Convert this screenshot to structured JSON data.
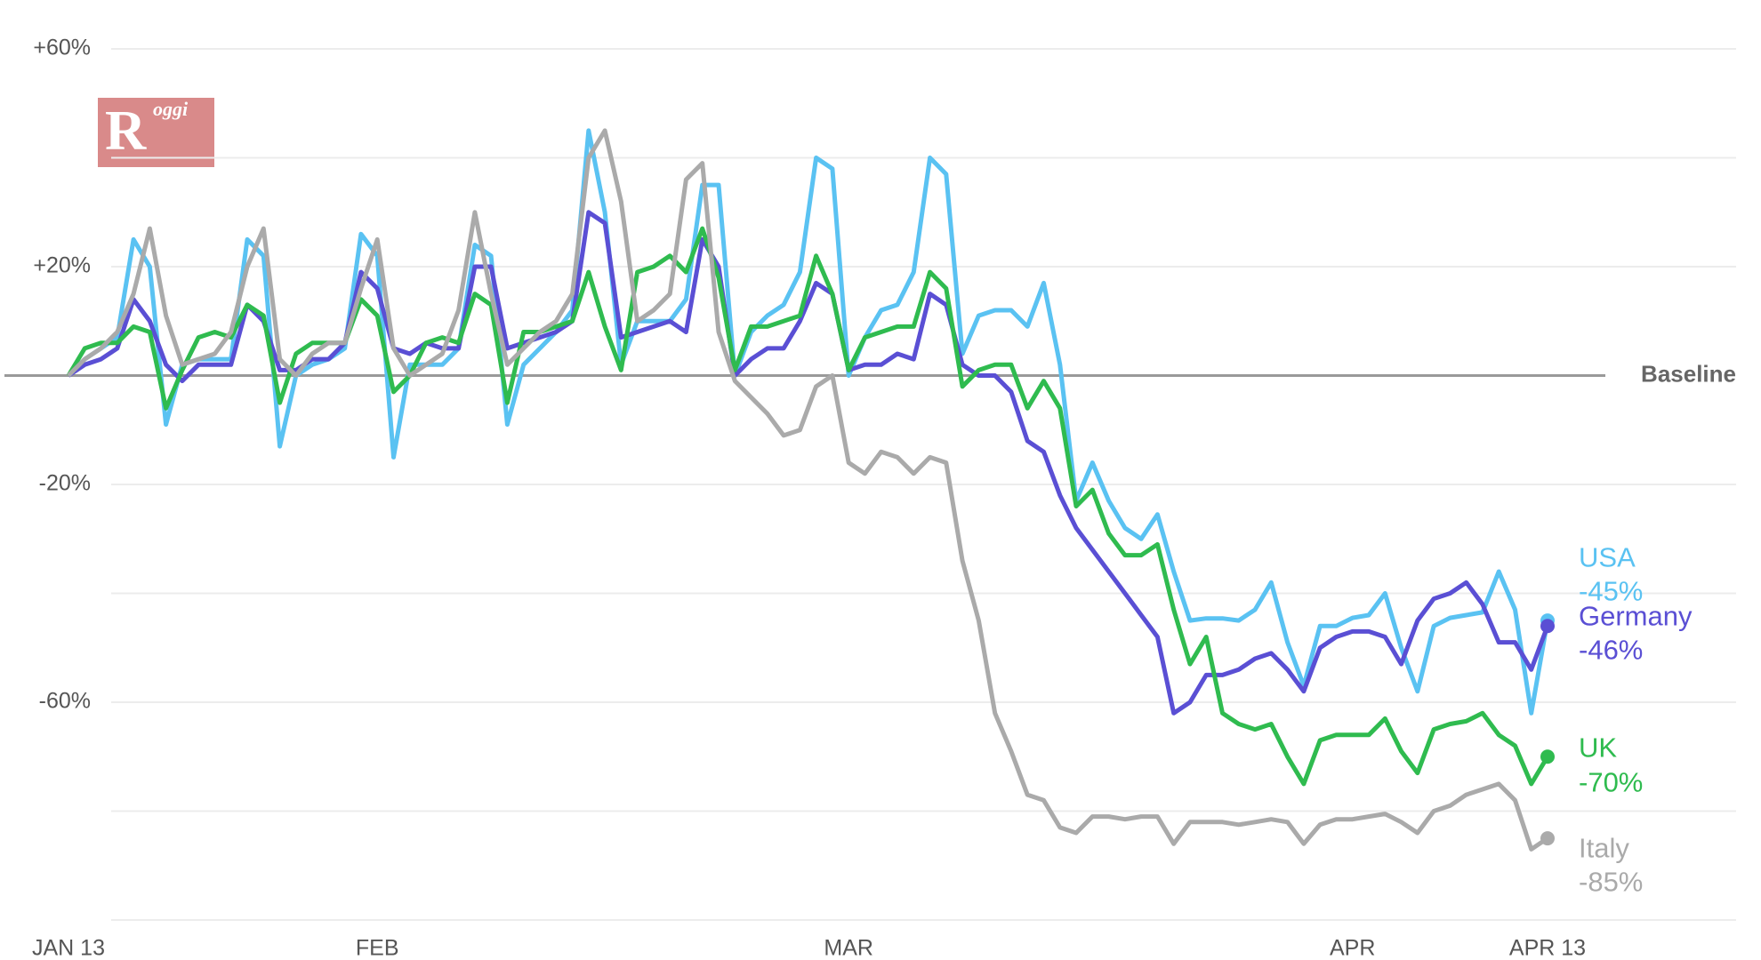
{
  "chart_data": {
    "type": "line",
    "categories": [
      "JAN 13",
      null,
      null,
      null,
      null,
      null,
      null,
      null,
      null,
      null,
      null,
      null,
      null,
      null,
      null,
      null,
      null,
      null,
      null,
      "FEB",
      null,
      null,
      null,
      null,
      null,
      null,
      null,
      null,
      null,
      null,
      null,
      null,
      null,
      null,
      null,
      null,
      null,
      null,
      null,
      null,
      null,
      null,
      null,
      null,
      null,
      null,
      null,
      null,
      "MAR",
      null,
      null,
      null,
      null,
      null,
      null,
      null,
      null,
      null,
      null,
      null,
      null,
      null,
      null,
      null,
      null,
      null,
      null,
      null,
      null,
      null,
      null,
      null,
      null,
      null,
      null,
      null,
      null,
      null,
      null,
      "APR",
      null,
      null,
      null,
      null,
      null,
      null,
      null,
      null,
      null,
      null,
      null,
      "APR 13"
    ],
    "ylim": [
      -100,
      60
    ],
    "yticks": [
      {
        "value": 60,
        "label": "+60%"
      },
      {
        "value": 20,
        "label": "+20%"
      },
      {
        "value": -20,
        "label": "-20%"
      },
      {
        "value": -60,
        "label": "-60%"
      }
    ],
    "gridlines": [
      60,
      40,
      20,
      -20,
      -40,
      -60,
      -80,
      -100
    ],
    "baseline": {
      "value": 0,
      "label": "Baseline"
    },
    "series": [
      {
        "name": "USA",
        "color": "#5ac2f2",
        "values": [
          0,
          3,
          5,
          7,
          25,
          20,
          -9,
          2,
          3,
          3,
          3,
          25,
          22,
          -13,
          0,
          2,
          3,
          5,
          26,
          22,
          -15,
          2,
          2,
          2,
          5,
          24,
          22,
          -9,
          2,
          5,
          8,
          12,
          45,
          30,
          2,
          10,
          10,
          10,
          14,
          35,
          35,
          0,
          8,
          11,
          13,
          19,
          40,
          38,
          0,
          7,
          12,
          13,
          19,
          40,
          37,
          4,
          11,
          12,
          12,
          9,
          17,
          2,
          -23,
          -16,
          -23,
          -28,
          -30,
          -25.5,
          -36,
          -45,
          -44.6,
          -44.6,
          -45,
          -43,
          -38,
          -49,
          -57,
          -46,
          -46,
          -44.5,
          -44,
          -40,
          -50,
          -58,
          -46,
          -44.5,
          -44,
          -43.5,
          -36,
          -43,
          -62,
          -45
        ],
        "value_labels": [
          null,
          null,
          null,
          null,
          null,
          null,
          null,
          null,
          null,
          null,
          null,
          null,
          null,
          null,
          null,
          null,
          null,
          null,
          null,
          null,
          null,
          null,
          null,
          null,
          null,
          null,
          null,
          null,
          null,
          null,
          null,
          null,
          null,
          null,
          null,
          null,
          null,
          null,
          null,
          null,
          null,
          null,
          null,
          null,
          null,
          null,
          null,
          null,
          null,
          null,
          null,
          null,
          null,
          null,
          null,
          null,
          null,
          null,
          null,
          null,
          null,
          null,
          null,
          null,
          null,
          null,
          null,
          null,
          null,
          null,
          null,
          null,
          null,
          null,
          null,
          null,
          null,
          null,
          null,
          null,
          null,
          null,
          null,
          null,
          null,
          null,
          null,
          null,
          null,
          null,
          null,
          "-45%"
        ]
      },
      {
        "name": "Germany",
        "color": "#5a4fd4",
        "values": [
          0,
          2,
          3,
          5,
          14,
          10,
          2,
          -1,
          2,
          2,
          2,
          13,
          10,
          1,
          1,
          3,
          3,
          6,
          19,
          16,
          5,
          4,
          6,
          5,
          5,
          20,
          20,
          5,
          6,
          7,
          8,
          10,
          30,
          28,
          7,
          8,
          9,
          10,
          8,
          25,
          20,
          0,
          3,
          5,
          5,
          10,
          17,
          15,
          1,
          2,
          2,
          4,
          3,
          15,
          13,
          2,
          0,
          0,
          -3,
          -12,
          -14,
          -22,
          -28,
          -32,
          -36,
          -40,
          -44,
          -48,
          -62,
          -60,
          -55,
          -55,
          -54,
          -52,
          -51,
          -54,
          -58,
          -50,
          -48,
          -47,
          -47,
          -48,
          -53,
          -45,
          -41,
          -40,
          -38,
          -42,
          -49,
          -49,
          -54,
          -46
        ],
        "value_labels": [
          null,
          null,
          null,
          null,
          null,
          null,
          null,
          null,
          null,
          null,
          null,
          null,
          null,
          null,
          null,
          null,
          null,
          null,
          null,
          null,
          null,
          null,
          null,
          null,
          null,
          null,
          null,
          null,
          null,
          null,
          null,
          null,
          null,
          null,
          null,
          null,
          null,
          null,
          null,
          null,
          null,
          null,
          null,
          null,
          null,
          null,
          null,
          null,
          null,
          null,
          null,
          null,
          null,
          null,
          null,
          null,
          null,
          null,
          null,
          null,
          null,
          null,
          null,
          null,
          null,
          null,
          null,
          null,
          null,
          null,
          null,
          null,
          null,
          null,
          null,
          null,
          null,
          null,
          null,
          null,
          null,
          null,
          null,
          null,
          null,
          null,
          null,
          null,
          null,
          null,
          null,
          "-46%"
        ]
      },
      {
        "name": "UK",
        "color": "#2fbb4f",
        "values": [
          0,
          5,
          6,
          6,
          9,
          8,
          -6,
          1,
          7,
          8,
          7,
          13,
          11,
          -5,
          4,
          6,
          6,
          6,
          14,
          11,
          -3,
          0,
          6,
          7,
          6,
          15,
          13,
          -5,
          8,
          8,
          9,
          10,
          19,
          9,
          1,
          19,
          20,
          22,
          19,
          27,
          18,
          1,
          9,
          9,
          10,
          11,
          22,
          15,
          1,
          7,
          8,
          9,
          9,
          19,
          16,
          -2,
          1,
          2,
          2,
          -6,
          -1,
          -6,
          -24,
          -21,
          -29,
          -33,
          -33,
          -31,
          -43,
          -53,
          -48,
          -62,
          -64,
          -65,
          -64,
          -70,
          -75,
          -67,
          -66,
          -66,
          -66,
          -63,
          -69,
          -73,
          -65,
          -64,
          -63.5,
          -62,
          -66,
          -68,
          -75,
          -70
        ],
        "value_labels": [
          null,
          null,
          null,
          null,
          null,
          null,
          null,
          null,
          null,
          null,
          null,
          null,
          null,
          null,
          null,
          null,
          null,
          null,
          null,
          null,
          null,
          null,
          null,
          null,
          null,
          null,
          null,
          null,
          null,
          null,
          null,
          null,
          null,
          null,
          null,
          null,
          null,
          null,
          null,
          null,
          null,
          null,
          null,
          null,
          null,
          null,
          null,
          null,
          null,
          null,
          null,
          null,
          null,
          null,
          null,
          null,
          null,
          null,
          null,
          null,
          null,
          null,
          null,
          null,
          null,
          null,
          null,
          null,
          null,
          null,
          null,
          null,
          null,
          null,
          null,
          null,
          null,
          null,
          null,
          null,
          null,
          null,
          null,
          null,
          null,
          null,
          null,
          null,
          null,
          null,
          null,
          "-70%"
        ]
      },
      {
        "name": "Italy",
        "color": "#aaaaaa",
        "values": [
          0,
          3,
          5,
          8,
          15,
          27,
          11,
          2,
          3,
          4,
          8,
          20,
          27,
          3,
          0,
          4,
          6,
          6,
          16,
          25,
          5,
          0,
          2,
          4,
          12,
          30,
          15,
          2,
          5,
          8,
          10,
          15,
          40,
          45,
          32,
          10,
          12,
          15,
          36,
          39,
          8,
          -1,
          -4,
          -7,
          -11,
          -10,
          -2,
          0,
          -16,
          -18,
          -14,
          -15,
          -18,
          -15,
          -16,
          -34,
          -45,
          -62,
          -69,
          -77,
          -78,
          -83,
          -84,
          -81,
          -81,
          -81.5,
          -81,
          -81,
          -86,
          -82,
          -82,
          -82,
          -82.5,
          -82,
          -81.5,
          -82,
          -86,
          -82.5,
          -81.5,
          -81.5,
          -81,
          -80.5,
          -82,
          -84,
          -80,
          -79,
          -77,
          -76,
          -75,
          -78,
          -87,
          -85
        ],
        "value_labels": [
          null,
          null,
          null,
          null,
          null,
          null,
          null,
          null,
          null,
          null,
          null,
          null,
          null,
          null,
          null,
          null,
          null,
          null,
          null,
          null,
          null,
          null,
          null,
          null,
          null,
          null,
          null,
          null,
          null,
          null,
          null,
          null,
          null,
          null,
          null,
          null,
          null,
          null,
          null,
          null,
          null,
          null,
          null,
          null,
          null,
          null,
          null,
          null,
          null,
          null,
          null,
          null,
          null,
          null,
          null,
          null,
          null,
          null,
          null,
          null,
          null,
          null,
          null,
          null,
          null,
          null,
          null,
          null,
          null,
          null,
          null,
          null,
          null,
          null,
          null,
          null,
          null,
          null,
          null,
          null,
          null,
          null,
          null,
          null,
          null,
          null,
          null,
          null,
          null,
          null,
          null,
          "-85%"
        ]
      }
    ]
  },
  "logo": {
    "letter": "R",
    "text": "oggi"
  }
}
